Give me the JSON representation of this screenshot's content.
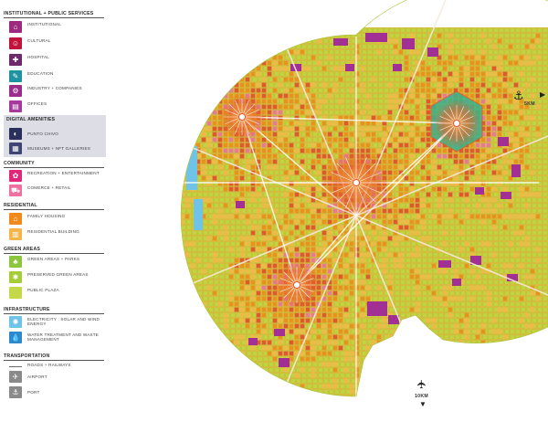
{
  "legend": {
    "institutional": {
      "heading": "INSTITUTIONAL + PUBLIC SERVICES",
      "items": [
        {
          "label": "INSTITUTIONAL",
          "color": "#9c2a7e",
          "icon": "institution-icon"
        },
        {
          "label": "CULTURAL",
          "color": "#c0143c",
          "icon": "theatre-icon"
        },
        {
          "label": "HOSPITAL",
          "color": "#6e2a6a",
          "icon": "hospital-icon"
        },
        {
          "label": "EDUCATION",
          "color": "#1f93a0",
          "icon": "education-icon"
        },
        {
          "label": "INDUSTRY + COMPANIES",
          "color": "#9a2d8c",
          "icon": "industry-icon"
        },
        {
          "label": "OFFICES",
          "color": "#a53a9e",
          "icon": "office-icon"
        }
      ]
    },
    "digital": {
      "heading": "DIGITAL AMENITIES",
      "items": [
        {
          "label": "PUNTO CHIVO",
          "color": "#2a2f5c",
          "icon": "punto-chivo-icon"
        },
        {
          "label": "MUSEUMS + NFT GALLERIES",
          "color": "#3f4572",
          "icon": "gallery-icon"
        }
      ]
    },
    "community": {
      "heading": "COMMUNITY",
      "items": [
        {
          "label": "RECREATION + ENTERTAINMENT",
          "color": "#e0287a",
          "icon": "recreation-icon"
        },
        {
          "label": "COMERCE + RETAIL",
          "color": "#ef6fa0",
          "icon": "retail-icon"
        }
      ]
    },
    "residential": {
      "heading": "RESIDENTIAL",
      "items": [
        {
          "label": "FAMILY HOUSING",
          "color": "#f08a1c",
          "icon": "house-icon"
        },
        {
          "label": "RESIDENTIAL BUILDING",
          "color": "#f6b54a",
          "icon": "building-icon"
        }
      ]
    },
    "green": {
      "heading": "GREEN AREAS",
      "items": [
        {
          "label": "GREEN AREAS + PARKS",
          "color": "#8cc63f",
          "icon": "park-icon"
        },
        {
          "label": "PRESERVED GREEN AREAS",
          "color": "#a6cc3a",
          "icon": "tree-icon"
        },
        {
          "label": "PUBLIC PLAZA",
          "color": "#c3d94a",
          "icon": "plaza-icon"
        }
      ]
    },
    "infrastructure": {
      "heading": "INFRASTRUCTURE",
      "items": [
        {
          "label": "ELECTRICITY : SOLAR AND WIND ENERGY",
          "color": "#6ec3e6",
          "icon": "solar-wind-icon"
        },
        {
          "label": "WATER TREATMENT AND WASTE MANAGEMENT",
          "color": "#2f88c9",
          "icon": "water-drop-icon"
        }
      ]
    },
    "transportation": {
      "heading": "TRANSPORTATION",
      "items": [
        {
          "label": "ROADS + RAILWAYS",
          "color": "#6a6a6a",
          "icon": "road-line"
        },
        {
          "label": "AIRPORT",
          "color": "#8a8a8a",
          "icon": "airplane-icon"
        },
        {
          "label": "PORT",
          "color": "#8a8a8a",
          "icon": "anchor-icon"
        }
      ]
    }
  },
  "map": {
    "base_color": "#c8dc4a",
    "port_label": "5KM",
    "airport_label": "10KM",
    "colors": {
      "green": "#b4d23c",
      "orange": "#f08a1c",
      "light_orange": "#f6b54a",
      "red": "#e64a2e",
      "pink": "#ef6fa0",
      "purple": "#a12f94",
      "water": "#6ec3e6",
      "teal": "#1f93a0"
    }
  }
}
